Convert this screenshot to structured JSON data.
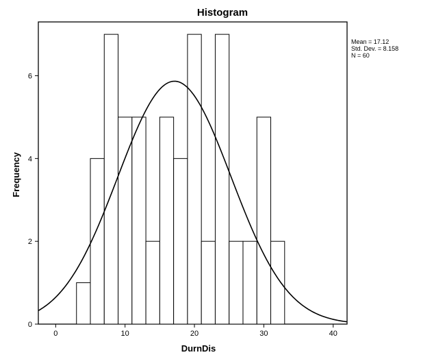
{
  "chart_data": {
    "type": "bar",
    "title": "Histogram",
    "xlabel": "DurnDis",
    "ylabel": "Frequency",
    "bin_width": 2,
    "bins": [
      {
        "start": 3,
        "end": 5,
        "count": 1
      },
      {
        "start": 5,
        "end": 7,
        "count": 4
      },
      {
        "start": 7,
        "end": 9,
        "count": 7
      },
      {
        "start": 9,
        "end": 11,
        "count": 5
      },
      {
        "start": 11,
        "end": 13,
        "count": 5
      },
      {
        "start": 13,
        "end": 15,
        "count": 2
      },
      {
        "start": 15,
        "end": 17,
        "count": 5
      },
      {
        "start": 17,
        "end": 19,
        "count": 4
      },
      {
        "start": 19,
        "end": 21,
        "count": 7
      },
      {
        "start": 21,
        "end": 23,
        "count": 2
      },
      {
        "start": 23,
        "end": 25,
        "count": 7
      },
      {
        "start": 25,
        "end": 27,
        "count": 2
      },
      {
        "start": 27,
        "end": 29,
        "count": 2
      },
      {
        "start": 29,
        "end": 31,
        "count": 5
      },
      {
        "start": 31,
        "end": 33,
        "count": 2
      }
    ],
    "normal_curve": {
      "mean": 17.12,
      "sd": 8.158,
      "n": 60
    },
    "xlim": [
      -2.5,
      42
    ],
    "ylim": [
      0,
      7.3
    ],
    "xticks": [
      0,
      10,
      20,
      30,
      40
    ],
    "yticks": [
      0,
      2,
      4,
      6
    ],
    "stats": [
      "Mean = 17.12",
      "Std. Dev. = 8.158",
      "N = 60"
    ],
    "legend_position": "right-top"
  }
}
